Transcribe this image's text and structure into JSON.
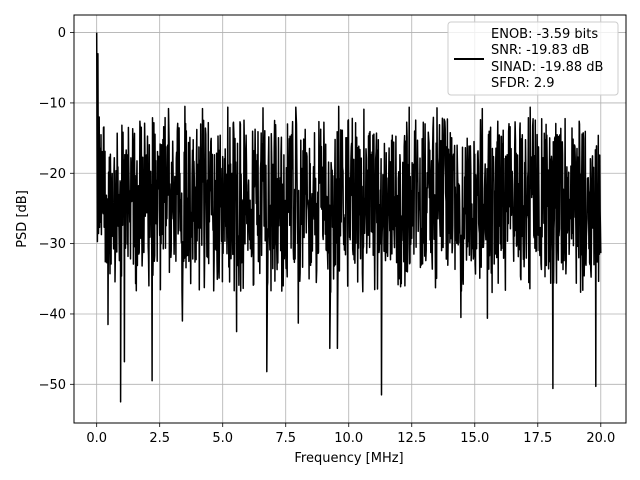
{
  "chart_data": {
    "type": "line",
    "xlabel": "Frequency [MHz]",
    "ylabel": "PSD [dB]",
    "xlim": [
      -0.9,
      21.0
    ],
    "ylim": [
      -55.5,
      2.5
    ],
    "xticks": [
      0.0,
      2.5,
      5.0,
      7.5,
      10.0,
      12.5,
      15.0,
      17.5,
      20.0
    ],
    "xtick_labels": [
      "0.0",
      "2.5",
      "5.0",
      "7.5",
      "10.0",
      "12.5",
      "15.0",
      "17.5",
      "20.0"
    ],
    "yticks": [
      0,
      -10,
      -20,
      -30,
      -40,
      -50
    ],
    "ytick_labels": [
      "0",
      "−10",
      "−20",
      "−30",
      "−40",
      "−50"
    ],
    "grid": true,
    "legend_position": "top-right",
    "legend_lines": [
      "ENOB: -3.59 bits",
      "SNR: -19.83 dB",
      "SINAD: -19.88 dB",
      "SFDR: 2.9"
    ],
    "series": [
      {
        "color": "#000000",
        "x_range": [
          0.0,
          20.0
        ],
        "typical_band_db": [
          -33,
          -14
        ],
        "peaks": [
          {
            "x": 0.0,
            "y": 0.0
          },
          {
            "x": 0.05,
            "y": -3.0
          },
          {
            "x": 0.1,
            "y": -12.0
          },
          {
            "x": 2.85,
            "y": -10.8
          },
          {
            "x": 3.5,
            "y": -10.5
          },
          {
            "x": 4.2,
            "y": -10.8
          },
          {
            "x": 5.2,
            "y": -10.6
          },
          {
            "x": 6.6,
            "y": -10.7
          },
          {
            "x": 7.9,
            "y": -10.6
          },
          {
            "x": 9.6,
            "y": -10.5
          },
          {
            "x": 10.6,
            "y": -10.9
          },
          {
            "x": 12.4,
            "y": -10.6
          },
          {
            "x": 13.5,
            "y": -10.7
          },
          {
            "x": 15.3,
            "y": -10.8
          },
          {
            "x": 17.2,
            "y": -10.6
          }
        ],
        "dips": [
          {
            "x": 0.45,
            "y": -41.5
          },
          {
            "x": 0.95,
            "y": -52.5
          },
          {
            "x": 1.1,
            "y": -46.8
          },
          {
            "x": 2.2,
            "y": -49.5
          },
          {
            "x": 3.4,
            "y": -41.0
          },
          {
            "x": 5.55,
            "y": -42.5
          },
          {
            "x": 6.75,
            "y": -48.2
          },
          {
            "x": 8.0,
            "y": -41.3
          },
          {
            "x": 9.25,
            "y": -44.9
          },
          {
            "x": 9.55,
            "y": -44.9
          },
          {
            "x": 11.3,
            "y": -51.5
          },
          {
            "x": 14.45,
            "y": -40.5
          },
          {
            "x": 15.5,
            "y": -40.6
          },
          {
            "x": 18.1,
            "y": -50.6
          },
          {
            "x": 19.8,
            "y": -50.3
          }
        ]
      }
    ]
  }
}
